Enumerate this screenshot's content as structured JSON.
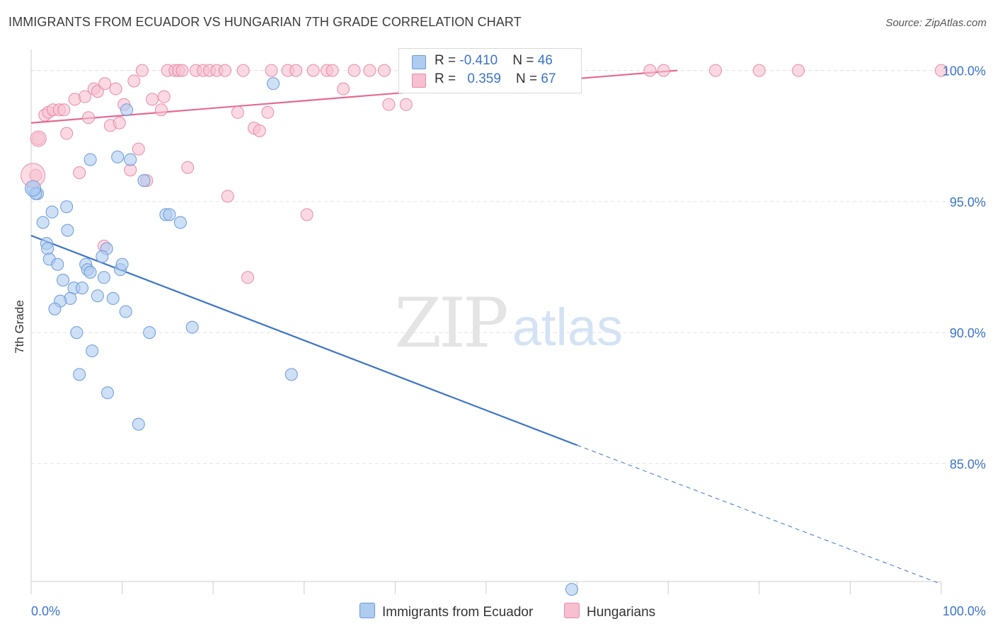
{
  "header": {
    "title": "IMMIGRANTS FROM ECUADOR VS HUNGARIAN 7TH GRADE CORRELATION CHART",
    "source": "Source: ZipAtlas.com"
  },
  "watermark": {
    "zip": "ZIP",
    "atlas": "atlas"
  },
  "legend": {
    "rows": [
      {
        "r_label": "R = ",
        "r_value": "-0.410",
        "n_label": "N = ",
        "n_value": "46",
        "color": "#aecbf0",
        "border": "#6a9ad8"
      },
      {
        "r_label": "R = ",
        "r_value": "0.359",
        "n_label": "N = ",
        "n_value": "67",
        "color": "#f7bfd0",
        "border": "#e88aa8"
      }
    ]
  },
  "bottom_legend": [
    {
      "label": "Immigrants from Ecuador",
      "color": "#aecbf0",
      "border": "#6a9ad8"
    },
    {
      "label": "Hungarians",
      "color": "#f7bfd0",
      "border": "#e88aa8"
    }
  ],
  "chart_data": {
    "type": "scatter",
    "title": "IMMIGRANTS FROM ECUADOR VS HUNGARIAN 7TH GRADE CORRELATION CHART",
    "xlabel": "",
    "ylabel": "7th Grade",
    "xlim": [
      0,
      100
    ],
    "ylim": [
      80.5,
      100.8
    ],
    "x_tick_labels": [
      "0.0%",
      "100.0%"
    ],
    "y_ticks": [
      85,
      90,
      95,
      100
    ],
    "y_tick_labels": [
      "85.0%",
      "90.0%",
      "95.0%",
      "100.0%"
    ],
    "grid": true,
    "legend_position": "top-center",
    "colors": {
      "ecuador": "#3b74c9",
      "hungarians": "#e46a92"
    },
    "series": [
      {
        "name": "Immigrants from Ecuador",
        "color": "#3b74c9",
        "fill": "#aecbf0",
        "points": [
          [
            0.2,
            95.5
          ],
          [
            0.7,
            95.3
          ],
          [
            1.3,
            94.2
          ],
          [
            2.3,
            94.6
          ],
          [
            3.9,
            94.8
          ],
          [
            4.0,
            93.9
          ],
          [
            1.7,
            93.4
          ],
          [
            1.8,
            93.2
          ],
          [
            2.0,
            92.8
          ],
          [
            2.9,
            92.6
          ],
          [
            6.0,
            92.6
          ],
          [
            6.2,
            92.4
          ],
          [
            6.5,
            92.3
          ],
          [
            8.0,
            92.1
          ],
          [
            8.3,
            93.2
          ],
          [
            9.8,
            92.4
          ],
          [
            10.0,
            92.6
          ],
          [
            3.5,
            92.0
          ],
          [
            4.7,
            91.7
          ],
          [
            5.6,
            91.7
          ],
          [
            4.3,
            91.3
          ],
          [
            7.3,
            91.4
          ],
          [
            9.0,
            91.3
          ],
          [
            3.2,
            91.2
          ],
          [
            2.6,
            90.9
          ],
          [
            10.4,
            90.8
          ],
          [
            5.0,
            90.0
          ],
          [
            13.0,
            90.0
          ],
          [
            17.7,
            90.2
          ],
          [
            6.7,
            89.3
          ],
          [
            5.3,
            88.4
          ],
          [
            8.4,
            87.7
          ],
          [
            11.8,
            86.5
          ],
          [
            28.6,
            88.4
          ],
          [
            14.8,
            94.5
          ],
          [
            15.2,
            94.5
          ],
          [
            16.4,
            94.2
          ],
          [
            6.5,
            96.6
          ],
          [
            9.5,
            96.7
          ],
          [
            10.9,
            96.6
          ],
          [
            12.4,
            95.8
          ],
          [
            10.5,
            98.5
          ],
          [
            26.6,
            99.5
          ],
          [
            59.4,
            80.2
          ],
          [
            0.5,
            95.3
          ],
          [
            7.8,
            92.9
          ]
        ]
      },
      {
        "name": "Hungarians",
        "color": "#e46a92",
        "fill": "#f7bfd0",
        "points": [
          [
            0.5,
            96.0
          ],
          [
            0.8,
            97.4
          ],
          [
            1.5,
            98.3
          ],
          [
            1.9,
            98.4
          ],
          [
            2.4,
            98.5
          ],
          [
            3.1,
            98.5
          ],
          [
            3.6,
            98.5
          ],
          [
            3.9,
            97.6
          ],
          [
            4.8,
            98.9
          ],
          [
            5.3,
            96.1
          ],
          [
            5.9,
            99.0
          ],
          [
            6.3,
            98.2
          ],
          [
            6.9,
            99.3
          ],
          [
            7.3,
            99.2
          ],
          [
            8.1,
            99.5
          ],
          [
            8.7,
            97.9
          ],
          [
            9.3,
            99.3
          ],
          [
            9.7,
            98.0
          ],
          [
            10.2,
            98.7
          ],
          [
            11.3,
            99.6
          ],
          [
            11.8,
            97.0
          ],
          [
            10.9,
            96.2
          ],
          [
            12.7,
            95.8
          ],
          [
            13.3,
            98.9
          ],
          [
            14.3,
            98.5
          ],
          [
            14.6,
            99.0
          ],
          [
            15.0,
            100.0
          ],
          [
            15.8,
            100.0
          ],
          [
            16.2,
            100.0
          ],
          [
            16.6,
            100.0
          ],
          [
            17.2,
            96.3
          ],
          [
            18.1,
            100.0
          ],
          [
            18.9,
            100.0
          ],
          [
            19.6,
            100.0
          ],
          [
            20.4,
            100.0
          ],
          [
            21.3,
            100.0
          ],
          [
            21.6,
            95.2
          ],
          [
            22.7,
            98.4
          ],
          [
            23.3,
            100.0
          ],
          [
            24.5,
            97.8
          ],
          [
            25.1,
            97.7
          ],
          [
            26.0,
            98.4
          ],
          [
            26.4,
            100.0
          ],
          [
            28.2,
            100.0
          ],
          [
            29.1,
            100.0
          ],
          [
            30.3,
            94.5
          ],
          [
            31.0,
            100.0
          ],
          [
            32.5,
            100.0
          ],
          [
            33.1,
            100.0
          ],
          [
            34.3,
            99.3
          ],
          [
            35.5,
            100.0
          ],
          [
            37.2,
            100.0
          ],
          [
            38.8,
            100.0
          ],
          [
            39.3,
            98.7
          ],
          [
            41.2,
            98.7
          ],
          [
            23.8,
            92.1
          ],
          [
            8.0,
            93.3
          ],
          [
            53.3,
            100.0
          ],
          [
            57.0,
            100.0
          ],
          [
            68.0,
            100.0
          ],
          [
            69.5,
            100.0
          ],
          [
            75.2,
            100.0
          ],
          [
            80.0,
            100.0
          ],
          [
            84.3,
            100.0
          ],
          [
            100.0,
            100.0
          ],
          [
            12.2,
            100.0
          ],
          [
            42.0,
            100.0
          ]
        ]
      }
    ],
    "trendlines": [
      {
        "series": "Immigrants from Ecuador",
        "x0": 0,
        "y0": 93.7,
        "x1": 60,
        "y1": 85.7,
        "dashed_to_x": 100,
        "dashed_to_y": 80.4
      },
      {
        "series": "Hungarians",
        "x0": 0,
        "y0": 98.0,
        "x1": 71,
        "y1": 100.0
      }
    ]
  }
}
